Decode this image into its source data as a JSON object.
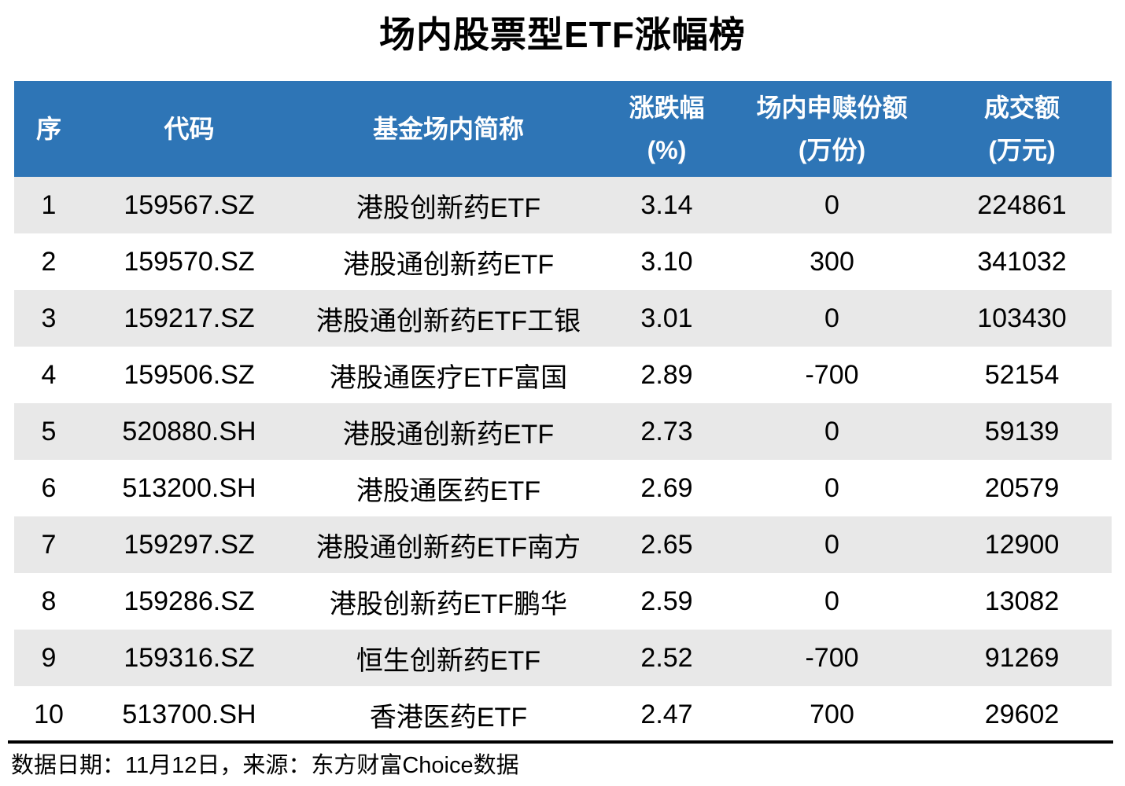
{
  "colors": {
    "header_bg": "#2E75B6",
    "header_text": "#FFFFFF",
    "row_bg": "#FFFFFF",
    "row_alt_bg": "#E8E8E8",
    "body_text": "#000000",
    "divider": "#000000"
  },
  "chart_data": {
    "type": "table",
    "title": "场内股票型ETF涨幅榜",
    "columns": [
      {
        "label": "序",
        "sub": ""
      },
      {
        "label": "代码",
        "sub": ""
      },
      {
        "label": "基金场内简称",
        "sub": ""
      },
      {
        "label": "涨跌幅",
        "sub": "(%)"
      },
      {
        "label": "场内申赎份额",
        "sub": "(万份)"
      },
      {
        "label": "成交额",
        "sub": "(万元)"
      }
    ],
    "rows": [
      [
        "1",
        "159567.SZ",
        "港股创新药ETF",
        "3.14",
        "0",
        "224861"
      ],
      [
        "2",
        "159570.SZ",
        "港股通创新药ETF",
        "3.10",
        "300",
        "341032"
      ],
      [
        "3",
        "159217.SZ",
        "港股通创新药ETF工银",
        "3.01",
        "0",
        "103430"
      ],
      [
        "4",
        "159506.SZ",
        "港股通医疗ETF富国",
        "2.89",
        "-700",
        "52154"
      ],
      [
        "5",
        "520880.SH",
        "港股通创新药ETF",
        "2.73",
        "0",
        "59139"
      ],
      [
        "6",
        "513200.SH",
        "港股通医药ETF",
        "2.69",
        "0",
        "20579"
      ],
      [
        "7",
        "159297.SZ",
        "港股通创新药ETF南方",
        "2.65",
        "0",
        "12900"
      ],
      [
        "8",
        "159286.SZ",
        "港股创新药ETF鹏华",
        "2.59",
        "0",
        "13082"
      ],
      [
        "9",
        "159316.SZ",
        "恒生创新药ETF",
        "2.52",
        "-700",
        "91269"
      ],
      [
        "10",
        "513700.SH",
        "香港医药ETF",
        "2.47",
        "700",
        "29602"
      ]
    ],
    "footnote": "数据日期：11月12日，来源：东方财富Choice数据"
  }
}
